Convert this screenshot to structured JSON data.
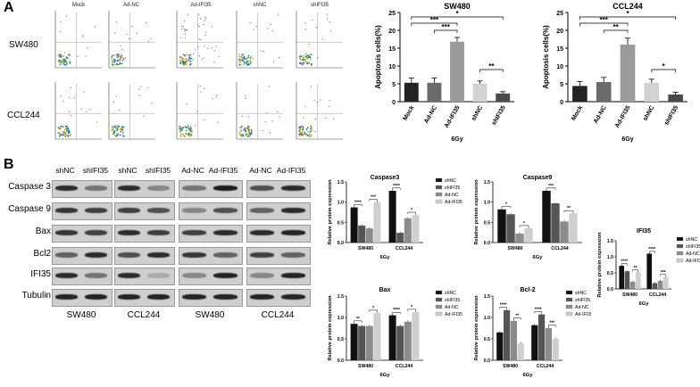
{
  "panelA": {
    "letter": "A",
    "col_labels": [
      "Mock",
      "Ad-NC",
      "Ad-IFI35",
      "shNC",
      "shIFI35"
    ],
    "row_labels": [
      "SW480",
      "CCL244"
    ]
  },
  "panelB": {
    "letter": "B",
    "wb_row_labels": [
      "Caspase 3",
      "Caspase 9",
      "Bax",
      "Bcl2",
      "IFI35",
      "Tubulin"
    ],
    "wb_lane_labels": [
      "shNC",
      "shIFI35",
      "shNC",
      "shIFI35",
      "Ad-NC",
      "Ad-IFI35",
      "Ad-NC",
      "Ad-IFI35"
    ],
    "wb_cell_lines": [
      "SW480",
      "CCL244",
      "SW480",
      "CCL244"
    ]
  },
  "chart_data": [
    {
      "type": "bar",
      "title": "SW480",
      "categories": [
        "Mock",
        "Ad-NC",
        "Ad-IFI35",
        "shNC",
        "shIFI35"
      ],
      "values": [
        5.3,
        5.3,
        16.8,
        5.0,
        2.3
      ],
      "errors": [
        1.3,
        1.3,
        1.2,
        0.8,
        0.5
      ],
      "colors": [
        "#222222",
        "#6b6b6b",
        "#9a9a9a",
        "#d2d2d2",
        "#4a4a4a"
      ],
      "ylabel": "Apoptosis cells(%)",
      "xlabel": "6Gy",
      "ylim": [
        0,
        25
      ],
      "yticks": [
        "0",
        "5",
        "10",
        "15",
        "20",
        "25"
      ],
      "significance": [
        "***",
        "***",
        "*",
        "**"
      ]
    },
    {
      "type": "bar",
      "title": "CCL244",
      "categories": [
        "Mock",
        "Ad-NC",
        "Ad-IFI35",
        "shNC",
        "shIFI35"
      ],
      "values": [
        4.4,
        5.5,
        16.0,
        5.3,
        2.0
      ],
      "errors": [
        1.2,
        1.3,
        1.8,
        1.0,
        0.6
      ],
      "colors": [
        "#222222",
        "#6b6b6b",
        "#9a9a9a",
        "#d2d2d2",
        "#4a4a4a"
      ],
      "ylabel": "Apoptosis cells(%)",
      "xlabel": "6Gy",
      "ylim": [
        0,
        25
      ],
      "yticks": [
        "0",
        "5",
        "10",
        "15",
        "20",
        "25"
      ],
      "significance": [
        "***",
        "**",
        "*",
        "*"
      ]
    },
    {
      "type": "bar",
      "title": "Caspase3",
      "categories": [
        "SW480",
        "CCL244"
      ],
      "series": [
        {
          "name": "shNC",
          "values": [
            0.87,
            1.28
          ],
          "color": "#111111"
        },
        {
          "name": "shIFI35",
          "values": [
            0.42,
            0.24
          ],
          "color": "#555555"
        },
        {
          "name": "Ad-NC",
          "values": [
            0.35,
            0.6
          ],
          "color": "#8c8c8c"
        },
        {
          "name": "Ad-IFI35",
          "values": [
            1.0,
            0.68
          ],
          "color": "#cfcfcf"
        }
      ],
      "ylabel": "Relative protein expression",
      "xlabel": "6Gy",
      "ylim": [
        0,
        1.5
      ],
      "yticks": [
        "0.0",
        "0.5",
        "1.0",
        "1.5"
      ],
      "significance": [
        "****",
        "***",
        "****",
        "*"
      ]
    },
    {
      "type": "bar",
      "title": "Caspase9",
      "categories": [
        "SW480",
        "CCL244"
      ],
      "series": [
        {
          "name": "shNC",
          "values": [
            0.82,
            1.28
          ],
          "color": "#111111"
        },
        {
          "name": "shIFI35",
          "values": [
            0.7,
            0.97
          ],
          "color": "#555555"
        },
        {
          "name": "Ad-NC",
          "values": [
            0.22,
            0.52
          ],
          "color": "#8c8c8c"
        },
        {
          "name": "Ad-IFI35",
          "values": [
            0.35,
            0.72
          ],
          "color": "#cfcfcf"
        }
      ],
      "ylabel": "Relative protein expression",
      "xlabel": "6Gy",
      "ylim": [
        0,
        1.5
      ],
      "yticks": [
        "0.0",
        "0.5",
        "1.0",
        "1.5"
      ],
      "significance": [
        "*",
        "*",
        "***",
        "**"
      ]
    },
    {
      "type": "bar",
      "title": "IFI35",
      "categories": [
        "SW480",
        "CCL244"
      ],
      "series": [
        {
          "name": "shNC",
          "values": [
            0.72,
            1.1
          ],
          "color": "#111111"
        },
        {
          "name": "shIFI35",
          "values": [
            0.55,
            0.18
          ],
          "color": "#555555"
        },
        {
          "name": "Ad-NC",
          "values": [
            0.22,
            0.25
          ],
          "color": "#8c8c8c"
        },
        {
          "name": "Ad-IFI35",
          "values": [
            0.52,
            0.38
          ],
          "color": "#cfcfcf"
        }
      ],
      "ylabel": "Relative protein expression",
      "xlabel": "6Gy",
      "ylim": [
        0,
        1.5
      ],
      "yticks": [
        "0.0",
        "0.5",
        "1.0",
        "1.5"
      ],
      "significance": [
        "****",
        "**",
        "****",
        "***"
      ]
    },
    {
      "type": "bar",
      "title": "Bax",
      "categories": [
        "SW480",
        "CCL244"
      ],
      "series": [
        {
          "name": "shNC",
          "values": [
            0.85,
            1.05
          ],
          "color": "#111111"
        },
        {
          "name": "shIFI35",
          "values": [
            0.8,
            0.8
          ],
          "color": "#555555"
        },
        {
          "name": "Ad-NC",
          "values": [
            0.8,
            0.9
          ],
          "color": "#8c8c8c"
        },
        {
          "name": "Ad-IFI35",
          "values": [
            1.1,
            1.12
          ],
          "color": "#cfcfcf"
        }
      ],
      "ylabel": "Relative protein expression",
      "xlabel": "6Gy",
      "ylim": [
        0,
        1.5
      ],
      "yticks": [
        "0.0",
        "0.5",
        "1.0",
        "1.5"
      ],
      "significance": [
        "**",
        "*",
        "****",
        "*"
      ]
    },
    {
      "type": "bar",
      "title": "Bcl-2",
      "categories": [
        "SW480",
        "CCL244"
      ],
      "series": [
        {
          "name": "shNC",
          "values": [
            0.65,
            0.82
          ],
          "color": "#111111"
        },
        {
          "name": "shIFI35",
          "values": [
            1.17,
            1.07
          ],
          "color": "#555555"
        },
        {
          "name": "Ad-NC",
          "values": [
            0.92,
            0.75
          ],
          "color": "#8c8c8c"
        },
        {
          "name": "Ad-IFI35",
          "values": [
            0.4,
            0.5
          ],
          "color": "#cfcfcf"
        }
      ],
      "ylabel": "Relative protein expression",
      "xlabel": "6Gy",
      "ylim": [
        0,
        1.5
      ],
      "yticks": [
        "0.0",
        "0.5",
        "1.0",
        "1.5"
      ],
      "significance": [
        "****",
        "**",
        "****",
        "***"
      ]
    }
  ]
}
